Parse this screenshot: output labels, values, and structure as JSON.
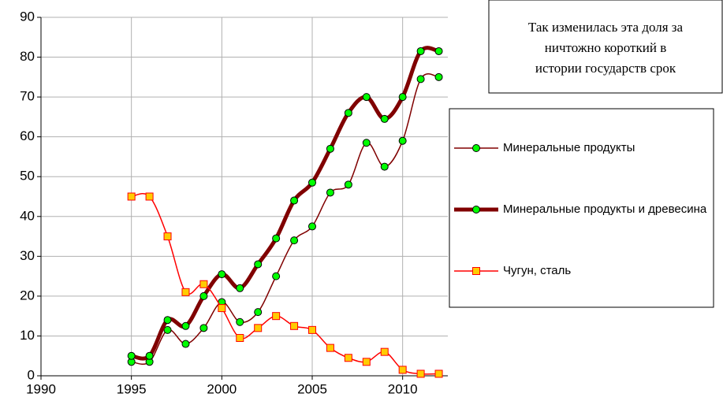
{
  "chart_data": {
    "type": "line",
    "annotation": [
      "Так изменилась эта доля за",
      "ничтожно короткий в",
      "истории государств срок"
    ],
    "x": [
      1995,
      1996,
      1997,
      1998,
      1999,
      2000,
      2001,
      2002,
      2003,
      2004,
      2005,
      2006,
      2007,
      2008,
      2009,
      2010,
      2011,
      2012
    ],
    "series": [
      {
        "name": "Минеральные продукты",
        "color": "#800000",
        "marker": "circle",
        "marker_color": "#00ff00",
        "width": 1.5,
        "values": [
          3.5,
          3.5,
          11.5,
          8,
          12,
          18.5,
          13.5,
          16,
          25,
          34,
          37.5,
          46,
          48,
          58.5,
          52.5,
          59,
          74.5,
          75
        ]
      },
      {
        "name": "Минеральные продукты и древесина",
        "color": "#800000",
        "marker": "circle",
        "marker_color": "#00ff00",
        "width": 5,
        "values": [
          5,
          5,
          14,
          12.5,
          20,
          25.5,
          22,
          28,
          34.5,
          44,
          48.5,
          57,
          66,
          70,
          64.5,
          70,
          81.5,
          81.5
        ]
      },
      {
        "name": "Чугун, сталь",
        "color": "#ff0000",
        "marker": "square",
        "marker_color": "#ffcc00",
        "width": 1.5,
        "values": [
          45,
          45,
          35,
          21,
          23,
          17,
          9.5,
          12,
          15,
          12.5,
          11.5,
          7,
          4.5,
          3.5,
          6,
          1.5,
          0.5,
          0.5
        ]
      }
    ],
    "xlim": [
      1990,
      2012.5
    ],
    "xticks": [
      1990,
      1995,
      2000,
      2005,
      2010
    ],
    "ylim": [
      0,
      90
    ],
    "yticks": [
      0,
      10,
      20,
      30,
      40,
      50,
      60,
      70,
      80,
      90
    ],
    "grid": true,
    "smooth": true
  }
}
